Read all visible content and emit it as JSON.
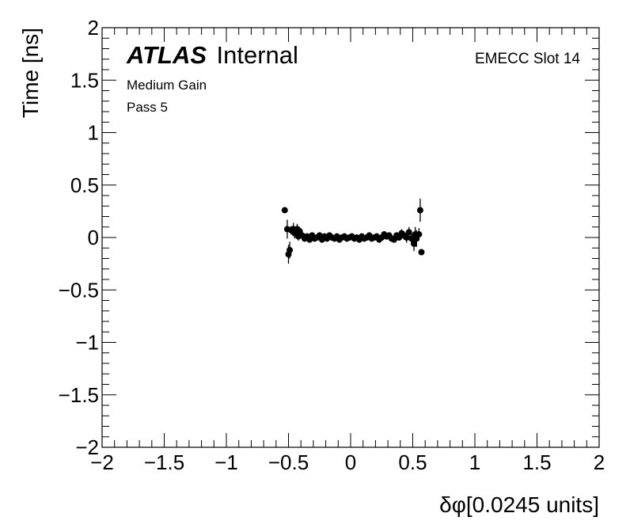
{
  "chart_data": {
    "type": "scatter",
    "title": "",
    "xlabel": "δφ[0.0245 units]",
    "ylabel": "Time [ns]",
    "xlim": [
      -2,
      2
    ],
    "ylim": [
      -2,
      2
    ],
    "xticks": [
      "−2",
      "−1.5",
      "−1",
      "−0.5",
      "0",
      "0.5",
      "1",
      "1.5",
      "2"
    ],
    "yticks": [
      "2",
      "1.5",
      "1",
      "0.5",
      "0",
      "−0.5",
      "−1",
      "−1.5",
      "−2"
    ],
    "grid": false,
    "annotations": {
      "experiment_bold": "ATLAS",
      "experiment_status": "Internal",
      "gain": "Medium Gain",
      "pass": "Pass 5",
      "slot": "EMECC Slot 14"
    },
    "series": [
      {
        "marker_color": "#000000",
        "points": [
          {
            "x": -0.53,
            "y": 0.26,
            "err": 0.02
          },
          {
            "x": -0.51,
            "y": 0.08,
            "err": 0.09
          },
          {
            "x": -0.5,
            "y": -0.16,
            "err": 0.09
          },
          {
            "x": -0.49,
            "y": -0.12,
            "err": 0.08
          },
          {
            "x": -0.48,
            "y": 0.07,
            "err": 0.04
          },
          {
            "x": -0.46,
            "y": 0.08,
            "err": 0.06
          },
          {
            "x": -0.45,
            "y": 0.04,
            "err": 0.05
          },
          {
            "x": -0.43,
            "y": 0.08,
            "err": 0.05
          },
          {
            "x": -0.42,
            "y": 0.01,
            "err": 0.04
          },
          {
            "x": -0.41,
            "y": 0.06,
            "err": 0.04
          },
          {
            "x": -0.39,
            "y": 0.02,
            "err": 0.03
          },
          {
            "x": -0.37,
            "y": -0.01,
            "err": 0.03
          },
          {
            "x": -0.35,
            "y": 0.01,
            "err": 0.03
          },
          {
            "x": -0.33,
            "y": -0.02,
            "err": 0.03
          },
          {
            "x": -0.31,
            "y": 0.02,
            "err": 0.03
          },
          {
            "x": -0.29,
            "y": -0.01,
            "err": 0.03
          },
          {
            "x": -0.27,
            "y": 0.0,
            "err": 0.03
          },
          {
            "x": -0.25,
            "y": 0.02,
            "err": 0.03
          },
          {
            "x": -0.23,
            "y": -0.02,
            "err": 0.03
          },
          {
            "x": -0.21,
            "y": 0.01,
            "err": 0.03
          },
          {
            "x": -0.19,
            "y": -0.01,
            "err": 0.03
          },
          {
            "x": -0.17,
            "y": 0.02,
            "err": 0.03
          },
          {
            "x": -0.15,
            "y": 0.0,
            "err": 0.03
          },
          {
            "x": -0.13,
            "y": -0.01,
            "err": 0.03
          },
          {
            "x": -0.11,
            "y": 0.01,
            "err": 0.03
          },
          {
            "x": -0.09,
            "y": -0.02,
            "err": 0.03
          },
          {
            "x": -0.07,
            "y": 0.0,
            "err": 0.03
          },
          {
            "x": -0.05,
            "y": 0.01,
            "err": 0.03
          },
          {
            "x": -0.03,
            "y": -0.01,
            "err": 0.03
          },
          {
            "x": -0.01,
            "y": 0.0,
            "err": 0.03
          },
          {
            "x": 0.01,
            "y": 0.01,
            "err": 0.03
          },
          {
            "x": 0.03,
            "y": -0.01,
            "err": 0.03
          },
          {
            "x": 0.05,
            "y": 0.0,
            "err": 0.03
          },
          {
            "x": 0.07,
            "y": -0.02,
            "err": 0.03
          },
          {
            "x": 0.09,
            "y": 0.01,
            "err": 0.03
          },
          {
            "x": 0.11,
            "y": -0.01,
            "err": 0.03
          },
          {
            "x": 0.13,
            "y": 0.0,
            "err": 0.03
          },
          {
            "x": 0.15,
            "y": 0.02,
            "err": 0.03
          },
          {
            "x": 0.17,
            "y": -0.01,
            "err": 0.03
          },
          {
            "x": 0.19,
            "y": 0.0,
            "err": 0.03
          },
          {
            "x": 0.21,
            "y": 0.01,
            "err": 0.03
          },
          {
            "x": 0.23,
            "y": -0.02,
            "err": 0.03
          },
          {
            "x": 0.25,
            "y": 0.0,
            "err": 0.03
          },
          {
            "x": 0.27,
            "y": 0.03,
            "err": 0.03
          },
          {
            "x": 0.29,
            "y": 0.01,
            "err": 0.03
          },
          {
            "x": 0.31,
            "y": 0.02,
            "err": 0.03
          },
          {
            "x": 0.33,
            "y": -0.01,
            "err": 0.03
          },
          {
            "x": 0.35,
            "y": -0.02,
            "err": 0.03
          },
          {
            "x": 0.37,
            "y": 0.02,
            "err": 0.03
          },
          {
            "x": 0.39,
            "y": 0.0,
            "err": 0.03
          },
          {
            "x": 0.41,
            "y": 0.04,
            "err": 0.04
          },
          {
            "x": 0.43,
            "y": 0.02,
            "err": 0.04
          },
          {
            "x": 0.45,
            "y": 0.0,
            "err": 0.05
          },
          {
            "x": 0.47,
            "y": 0.05,
            "err": 0.05
          },
          {
            "x": 0.49,
            "y": -0.01,
            "err": 0.06
          },
          {
            "x": 0.51,
            "y": -0.06,
            "err": 0.07
          },
          {
            "x": 0.52,
            "y": 0.03,
            "err": 0.07
          },
          {
            "x": 0.53,
            "y": -0.01,
            "err": 0.08
          },
          {
            "x": 0.55,
            "y": 0.03,
            "err": 0.06
          },
          {
            "x": 0.56,
            "y": 0.26,
            "err": 0.11
          },
          {
            "x": 0.57,
            "y": -0.14,
            "err": 0.02
          }
        ]
      }
    ]
  }
}
